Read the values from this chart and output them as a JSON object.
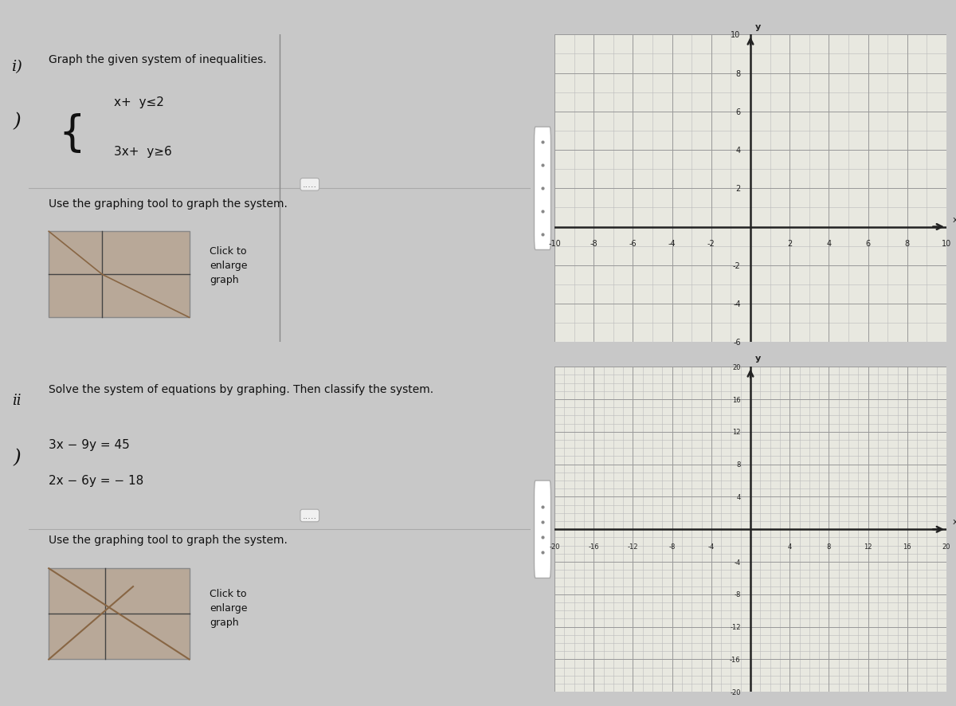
{
  "overall_bg": "#c8c8c8",
  "panel1_bg": "#d8d8d0",
  "panel2_bg": "#d8d8d0",
  "graph_bg": "#e8e8e0",
  "white": "#ffffff",
  "blue_bar": "#3a6fa0",
  "grid_color": "#999999",
  "grid_fine_color": "#bbbbbb",
  "axis_color": "#222222",
  "text_color": "#111111",
  "thumb_bg": "#b8a898",
  "thumb_line": "#444444",
  "separator_color": "#aaaaaa",
  "dot_btn_color": "#888888",
  "panel1": {
    "label": "i)",
    "title": "Graph the given system of inequalities.",
    "eq1": "x+  y≤2",
    "eq2": "3x+  y≥6",
    "instruction": "Use the graphing tool to graph the system.",
    "click_text": "Click to\nenlarge\ngraph",
    "xlim": [
      -10,
      10
    ],
    "ylim": [
      -6,
      10
    ],
    "xticks": [
      -10,
      -8,
      -6,
      -4,
      -2,
      2,
      4,
      6,
      8,
      10
    ],
    "yticks": [
      -6,
      -4,
      -2,
      2,
      4,
      6,
      8,
      10
    ],
    "xlabel": "x",
    "ylabel": "y"
  },
  "panel2": {
    "label": "ii)",
    "title": "Solve the system of equations by graphing. Then classify the system.",
    "eq1": "3x − 9y = 45",
    "eq2": "2x − 6y = − 18",
    "instruction": "Use the graphing tool to graph the system.",
    "click_text": "Click to\nenlarge\ngraph",
    "xlim": [
      -20,
      20
    ],
    "ylim": [
      -20,
      20
    ],
    "xticks": [
      -20,
      -16,
      -12,
      -8,
      -4,
      4,
      8,
      12,
      16,
      20
    ],
    "yticks": [
      -20,
      -16,
      -12,
      -8,
      -4,
      4,
      8,
      12,
      16,
      20
    ],
    "xlabel": "x",
    "ylabel": "y"
  }
}
